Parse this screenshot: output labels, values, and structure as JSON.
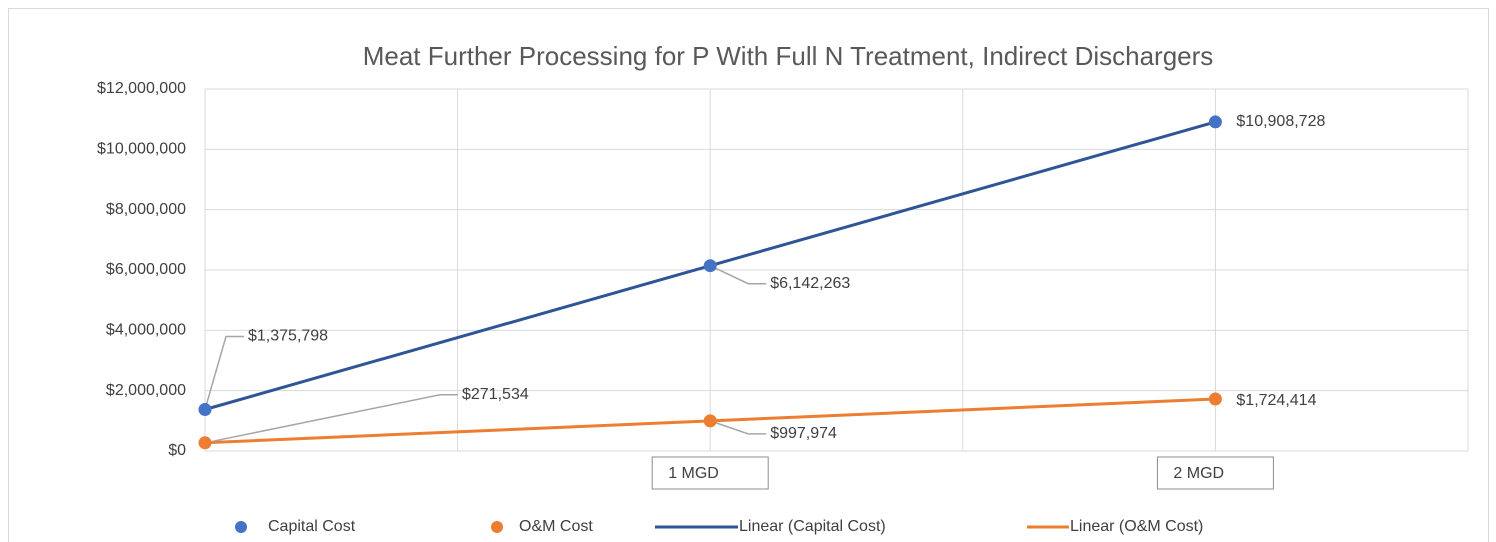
{
  "chart_data": {
    "type": "scatter",
    "title": "Meat Further Processing for P With Full N Treatment, Indirect Dischargers",
    "x": [
      0,
      1,
      2
    ],
    "series": [
      {
        "name": "Capital Cost",
        "color": "#4472c4",
        "values": [
          1375798,
          6142263,
          10908728
        ],
        "value_labels": [
          "$1,375,798",
          "$6,142,263",
          "$10,908,728"
        ]
      },
      {
        "name": "O&M Cost",
        "color": "#ed7d31",
        "values": [
          271534,
          997974,
          1724414
        ],
        "value_labels": [
          "$271,534",
          "$997,974",
          "$1,724,414"
        ]
      }
    ],
    "trendlines": [
      {
        "name": "Linear (Capital Cost)",
        "series": 0,
        "color": "#2f5597"
      },
      {
        "name": "Linear (O&M Cost)",
        "series": 1,
        "color": "#ed7d31"
      }
    ],
    "annotations": [
      {
        "text": "1 MGD",
        "x": 1
      },
      {
        "text": "2 MGD",
        "x": 2
      }
    ],
    "xlim": [
      0,
      2.5
    ],
    "xticks": [
      0,
      0.5,
      1,
      1.5,
      2,
      2.5
    ],
    "ylim": [
      0,
      12000000
    ],
    "yticks": [
      {
        "value": 0,
        "label": "$0"
      },
      {
        "value": 2000000,
        "label": "$2,000,000"
      },
      {
        "value": 4000000,
        "label": "$4,000,000"
      },
      {
        "value": 6000000,
        "label": "$6,000,000"
      },
      {
        "value": 8000000,
        "label": "$8,000,000"
      },
      {
        "value": 10000000,
        "label": "$10,000,000"
      },
      {
        "value": 12000000,
        "label": "$12,000,000"
      }
    ],
    "grid": true,
    "legend": "bottom"
  }
}
